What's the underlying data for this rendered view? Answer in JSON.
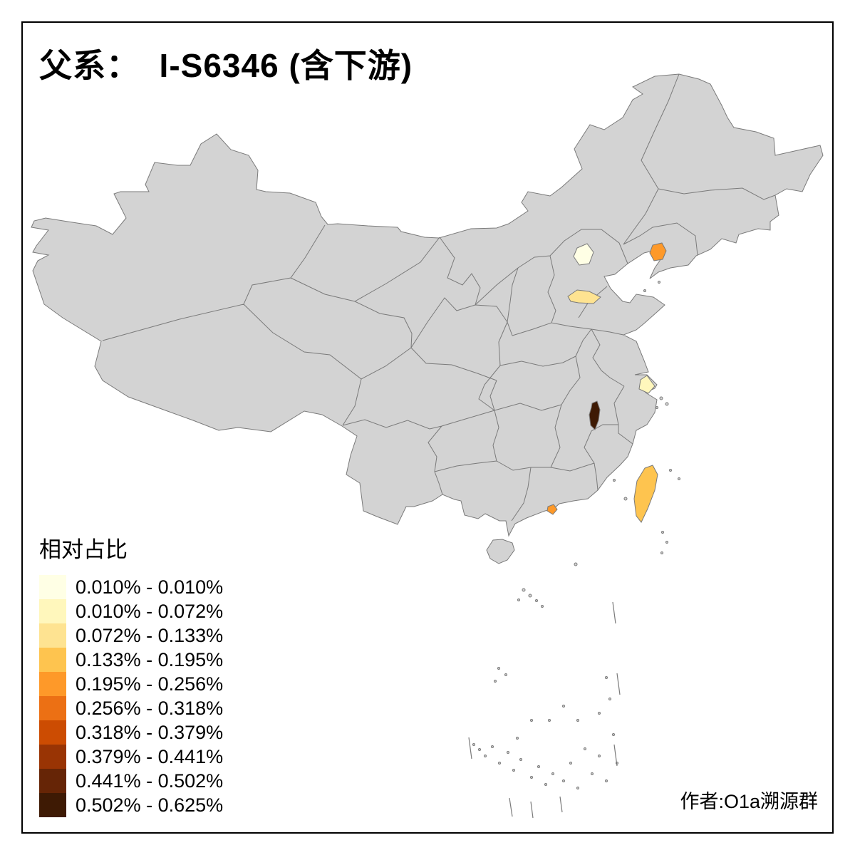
{
  "title": "父系：  I-S6346 (含下游)",
  "credit": "作者:O1a溯源群",
  "legend": {
    "title": "相对占比",
    "classes": [
      {
        "label": "0.010% - 0.010%",
        "color": "#FFFFE5"
      },
      {
        "label": "0.010% - 0.072%",
        "color": "#FFF7BC"
      },
      {
        "label": "0.072% - 0.133%",
        "color": "#FEE391"
      },
      {
        "label": "0.133% - 0.195%",
        "color": "#FEC44F"
      },
      {
        "label": "0.195% - 0.256%",
        "color": "#FE9929"
      },
      {
        "label": "0.256% - 0.318%",
        "color": "#EC7014"
      },
      {
        "label": "0.318% - 0.379%",
        "color": "#CC4C02"
      },
      {
        "label": "0.379% - 0.441%",
        "color": "#993404"
      },
      {
        "label": "0.441% - 0.502%",
        "color": "#662506"
      },
      {
        "label": "0.502% - 0.625%",
        "color": "#3E1A04"
      }
    ]
  },
  "map": {
    "land_color": "#D3D3D3",
    "border_color": "#7A7A7A",
    "sea_color": "#FFFFFF",
    "highlighted_regions": [
      {
        "name": "Beijing area",
        "value_class": "0.010% - 0.010%",
        "color": "#FFFFE5"
      },
      {
        "name": "Central Hebei area",
        "value_class": "0.072% - 0.133%",
        "color": "#FEE391"
      },
      {
        "name": "Central Liaoning area",
        "value_class": "0.195% - 0.256%",
        "color": "#FE9929"
      },
      {
        "name": "Shanghai area",
        "value_class": "0.010% - 0.072%",
        "color": "#FFF7BC"
      },
      {
        "name": "Northeast Jiangxi area",
        "value_class": "0.502% - 0.625%",
        "color": "#3E1A04"
      },
      {
        "name": "Taiwan",
        "value_class": "0.133% - 0.195%",
        "color": "#FEC44F"
      },
      {
        "name": "Pearl River Delta area",
        "value_class": "0.195% - 0.256%",
        "color": "#FE9929"
      }
    ]
  }
}
